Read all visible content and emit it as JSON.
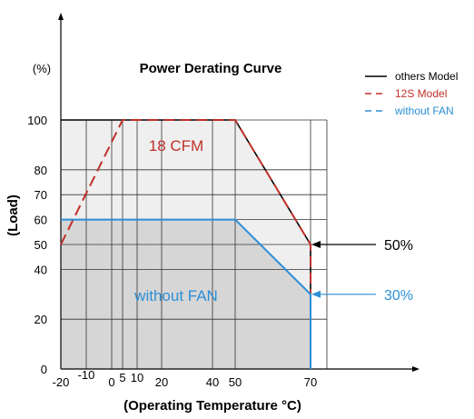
{
  "chart_data": {
    "type": "line",
    "title": "Power Derating Curve",
    "xlabel": "(Operating Temperature °C)",
    "ylabel": "(Load)",
    "y_unit_label": "(%)",
    "x_ticks": [
      "-20",
      "-10",
      "0",
      "5",
      "10",
      "20",
      "40",
      "50",
      "70"
    ],
    "y_ticks": [
      "0",
      "20",
      "40",
      "50",
      "60",
      "70",
      "80",
      "100"
    ],
    "xlim": [
      -20,
      75
    ],
    "ylim": [
      0,
      100
    ],
    "grid": true,
    "legend_position": "top-right",
    "series": [
      {
        "name": "others Model",
        "style": "solid",
        "color": "#000000",
        "points": [
          [
            -20,
            100
          ],
          [
            50,
            100
          ],
          [
            70,
            50
          ],
          [
            70,
            0
          ]
        ]
      },
      {
        "name": "12S Model",
        "style": "dashed",
        "color": "#c0302a",
        "points": [
          [
            -20,
            50
          ],
          [
            5,
            100
          ],
          [
            50,
            100
          ],
          [
            70,
            50
          ],
          [
            70,
            0
          ]
        ]
      },
      {
        "name": "without FAN",
        "style": "solid",
        "color": "#2b8fd6",
        "points": [
          [
            -20,
            60
          ],
          [
            50,
            60
          ],
          [
            70,
            30
          ],
          [
            70,
            0
          ]
        ]
      }
    ],
    "annotations": [
      {
        "text": "18 CFM",
        "color": "#c0302a"
      },
      {
        "text": "without FAN",
        "color": "#2b8fd6"
      },
      {
        "text": "50%",
        "color": "#000000",
        "x": 70,
        "y": 50
      },
      {
        "text": "30%",
        "color": "#2b8fd6",
        "x": 70,
        "y": 30
      }
    ]
  }
}
